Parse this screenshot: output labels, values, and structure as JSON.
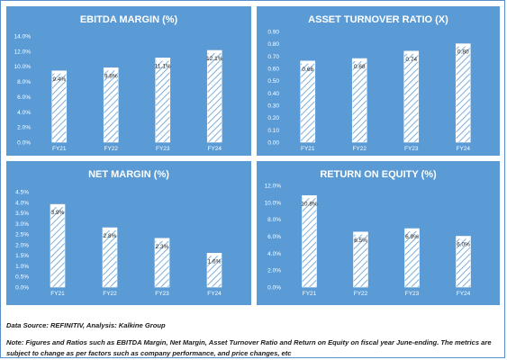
{
  "notes": {
    "source": "Data Source: REFINITIV, Analysis: Kalkine Group",
    "note": "Note: Figures and Ratios such as EBITDA Margin, Net Margin, Asset Turnover Ratio and Return on Equity on fiscal year June-ending. The metrics are subject to change as per factors such as company performance, and price changes, etc"
  },
  "colors": {
    "panel_bg": "#5b9bd5",
    "bar_fill": "#ffffff",
    "hatch": "#5b9bd5",
    "text": "#ffffff",
    "label_text": "#1f1f1f"
  },
  "chart_data": [
    {
      "id": "ebitda-margin",
      "type": "bar",
      "title": "EBITDA MARGIN (%)",
      "categories": [
        "FY21",
        "FY22",
        "FY23",
        "FY24"
      ],
      "values": [
        9.4,
        9.8,
        11.1,
        12.1
      ],
      "data_labels": [
        "9.4%",
        "9.8%",
        "11.1%",
        "12.1%"
      ],
      "ylim": [
        0,
        14
      ],
      "yticks": [
        0,
        2,
        4,
        6,
        8,
        10,
        12,
        14
      ],
      "ytick_labels": [
        "0.0%",
        "2.0%",
        "4.0%",
        "6.0%",
        "8.0%",
        "10.0%",
        "12.0%",
        "14.0%"
      ],
      "grid": false,
      "legend": "none"
    },
    {
      "id": "asset-turnover",
      "type": "bar",
      "title": "ASSET TURNOVER RATIO (X)",
      "categories": [
        "FY21",
        "FY22",
        "FY23",
        "FY24"
      ],
      "values": [
        0.66,
        0.68,
        0.74,
        0.8
      ],
      "data_labels": [
        "0.66",
        "0.68",
        "0.74",
        "0.80"
      ],
      "ylim": [
        0,
        0.9
      ],
      "yticks": [
        0,
        0.1,
        0.2,
        0.3,
        0.4,
        0.5,
        0.6,
        0.7,
        0.8,
        0.9
      ],
      "ytick_labels": [
        "0.00",
        "0.10",
        "0.20",
        "0.30",
        "0.40",
        "0.50",
        "0.60",
        "0.70",
        "0.80",
        "0.90"
      ],
      "grid": false,
      "legend": "none"
    },
    {
      "id": "net-margin",
      "type": "bar",
      "title": "NET MARGIN (%)",
      "categories": [
        "FY21",
        "FY22",
        "FY23",
        "FY24"
      ],
      "values": [
        3.9,
        2.8,
        2.3,
        1.6
      ],
      "data_labels": [
        "3.9%",
        "2.8%",
        "2.3%",
        "1.6%"
      ],
      "ylim": [
        0,
        4.5
      ],
      "yticks": [
        0,
        0.5,
        1,
        1.5,
        2,
        2.5,
        3,
        3.5,
        4,
        4.5
      ],
      "ytick_labels": [
        "0.0%",
        "0.5%",
        "1.0%",
        "1.5%",
        "2.0%",
        "2.5%",
        "3.0%",
        "3.5%",
        "4.0%",
        "4.5%"
      ],
      "grid": false,
      "legend": "none"
    },
    {
      "id": "return-on-equity",
      "type": "bar",
      "title": "RETURN ON EQUITY (%)",
      "categories": [
        "FY21",
        "FY22",
        "FY23",
        "FY24"
      ],
      "values": [
        10.8,
        6.5,
        6.9,
        6.0
      ],
      "data_labels": [
        "10.8%",
        "6.5%",
        "6.9%",
        "6.0%"
      ],
      "ylim": [
        0,
        12
      ],
      "yticks": [
        0,
        2,
        4,
        6,
        8,
        10,
        12
      ],
      "ytick_labels": [
        "0.0%",
        "2.0%",
        "4.0%",
        "6.0%",
        "8.0%",
        "10.0%",
        "12.0%"
      ],
      "grid": false,
      "legend": "none"
    }
  ]
}
